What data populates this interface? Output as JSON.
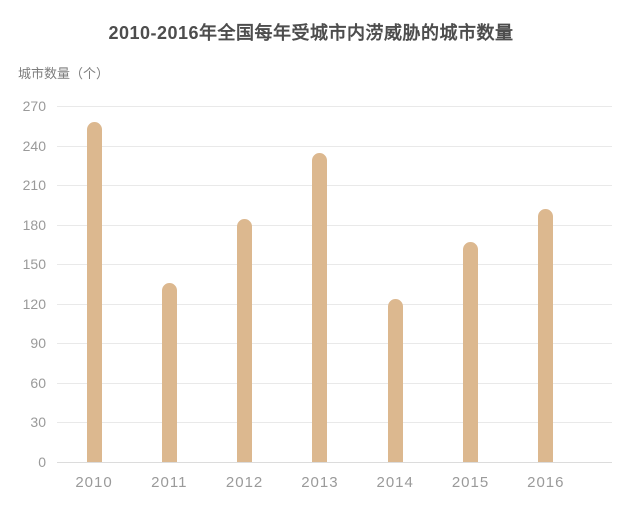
{
  "chart_data": {
    "type": "bar",
    "title": "2010-2016年全国每年受城市内涝威胁的城市数量",
    "ylabel": "城市数量（个）",
    "xlabel": "",
    "categories": [
      "2010",
      "2011",
      "2012",
      "2013",
      "2014",
      "2015",
      "2016"
    ],
    "values": [
      258,
      136,
      184,
      234,
      124,
      167,
      192
    ],
    "ylim": [
      0,
      270
    ],
    "yticks": [
      0,
      30,
      60,
      90,
      120,
      150,
      180,
      210,
      240,
      270
    ],
    "grid": true,
    "legend": false,
    "colors": {
      "bar": "#dcb88f",
      "gridline": "#e9e9e9",
      "baseline": "#dcdcdc",
      "title": "#4d4d4d",
      "tick_label": "#9a9a9a",
      "y_axis_title": "#7d7d7d",
      "background": "#ffffff"
    }
  }
}
